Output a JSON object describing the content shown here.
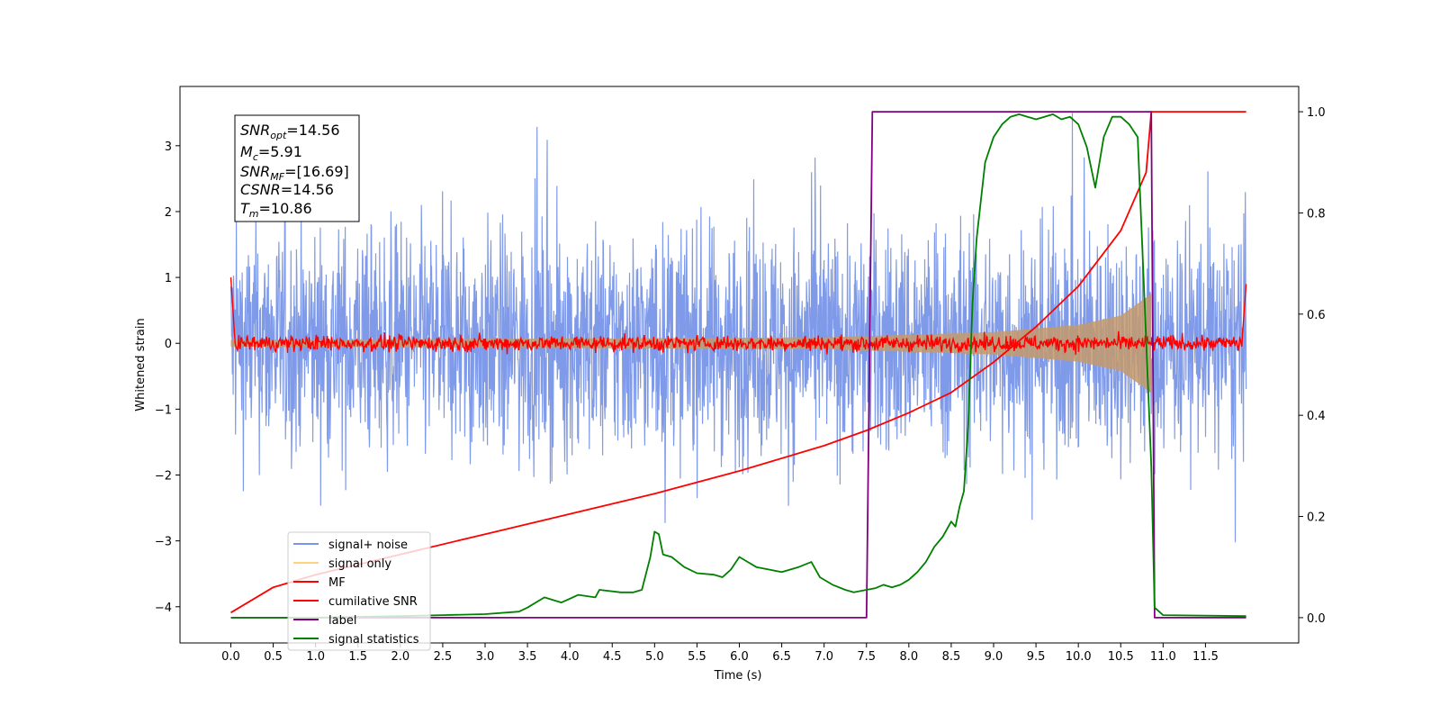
{
  "chart_data": {
    "type": "line",
    "xlabel": "Time (s)",
    "ylabel": "Whitened strain",
    "xlim": [
      -0.6,
      12.6
    ],
    "ylim": [
      -4.55,
      3.9
    ],
    "ylim_right": [
      -0.05,
      1.05
    ],
    "x_ticks": [
      "0.0",
      "0.5",
      "1.0",
      "1.5",
      "2.0",
      "2.5",
      "3.0",
      "3.5",
      "4.0",
      "4.5",
      "5.0",
      "5.5",
      "6.0",
      "6.5",
      "7.0",
      "7.5",
      "8.0",
      "8.5",
      "9.0",
      "9.5",
      "10.0",
      "10.5",
      "11.0",
      "11.5"
    ],
    "y_ticks": [
      "3",
      "2",
      "1",
      "0",
      "−1",
      "−2",
      "−3",
      "−4"
    ],
    "y_right_ticks": [
      "1.0",
      "0.8",
      "0.6",
      "0.4",
      "0.2",
      "0.0"
    ],
    "grid": false,
    "legend_position": "lower-left",
    "info_box": {
      "line1": {
        "sym": "SNR",
        "sub": "opt",
        "val": "=14.56"
      },
      "line2": {
        "sym": "M",
        "sub": "c",
        "val": "=5.91"
      },
      "line3": {
        "sym": "SNR",
        "sub": "MF",
        "val": "=[16.69]"
      },
      "line4": {
        "sym": "CSNR",
        "val": "=14.56"
      },
      "line5": {
        "sym": "T",
        "sub": "m",
        "val": "=10.86"
      }
    },
    "series": [
      {
        "name": "signal+ noise",
        "color": "#7895e8",
        "axis": "left",
        "x_range": [
          0,
          11.98
        ],
        "amplitude_sigma": 0.85
      },
      {
        "name": "signal only",
        "color": "#ffd27f",
        "axis": "left",
        "x_range": [
          0,
          10.86
        ],
        "envelope": [
          [
            0,
            0.05
          ],
          [
            7.0,
            0.09
          ],
          [
            9.0,
            0.17
          ],
          [
            10.0,
            0.28
          ],
          [
            10.5,
            0.42
          ],
          [
            10.86,
            0.75
          ]
        ]
      },
      {
        "name": "MF",
        "color": "#ff0000",
        "axis": "left",
        "x_range": [
          0,
          11.98
        ],
        "level": 0.0,
        "noise": 0.06
      },
      {
        "name": "cumilative SNR",
        "color": "#ff0000",
        "axis": "right",
        "x": [
          0,
          0.5,
          1,
          2,
          3,
          4,
          5,
          6,
          7,
          7.5,
          8,
          8.5,
          9,
          9.5,
          10,
          10.5,
          10.8,
          10.86,
          11.98
        ],
        "values": [
          0.01,
          0.06,
          0.085,
          0.125,
          0.165,
          0.205,
          0.245,
          0.29,
          0.34,
          0.37,
          0.405,
          0.445,
          0.505,
          0.575,
          0.655,
          0.765,
          0.88,
          1.0,
          1.0
        ]
      },
      {
        "name": "label",
        "color": "#800080",
        "axis": "right",
        "x": [
          0,
          7.5,
          7.57,
          10.86,
          10.9,
          11.98
        ],
        "values": [
          0,
          0,
          1,
          1,
          0,
          0
        ]
      },
      {
        "name": "signal statistics",
        "color": "#008000",
        "axis": "right",
        "x": [
          0,
          1,
          2,
          2.5,
          3,
          3.4,
          3.5,
          3.7,
          3.9,
          4.1,
          4.3,
          4.35,
          4.6,
          4.75,
          4.85,
          4.95,
          5.0,
          5.05,
          5.1,
          5.2,
          5.35,
          5.5,
          5.7,
          5.8,
          5.9,
          6.0,
          6.1,
          6.2,
          6.35,
          6.5,
          6.7,
          6.85,
          6.95,
          7.1,
          7.25,
          7.35,
          7.5,
          7.6,
          7.7,
          7.8,
          7.9,
          8.0,
          8.1,
          8.2,
          8.3,
          8.4,
          8.5,
          8.55,
          8.6,
          8.65,
          8.7,
          8.75,
          8.8,
          8.9,
          9.0,
          9.1,
          9.2,
          9.3,
          9.4,
          9.5,
          9.6,
          9.7,
          9.8,
          9.9,
          10.0,
          10.1,
          10.2,
          10.3,
          10.4,
          10.5,
          10.6,
          10.7,
          10.8,
          10.86,
          10.9,
          11.0,
          11.98
        ],
        "values": [
          0,
          0,
          0.003,
          0.005,
          0.007,
          0.012,
          0.02,
          0.04,
          0.03,
          0.045,
          0.04,
          0.055,
          0.05,
          0.05,
          0.055,
          0.12,
          0.17,
          0.165,
          0.125,
          0.12,
          0.1,
          0.088,
          0.085,
          0.08,
          0.095,
          0.12,
          0.11,
          0.1,
          0.095,
          0.09,
          0.1,
          0.11,
          0.08,
          0.065,
          0.055,
          0.05,
          0.055,
          0.058,
          0.065,
          0.06,
          0.065,
          0.075,
          0.09,
          0.11,
          0.14,
          0.16,
          0.19,
          0.18,
          0.22,
          0.25,
          0.38,
          0.62,
          0.75,
          0.9,
          0.95,
          0.975,
          0.99,
          0.995,
          0.99,
          0.985,
          0.99,
          0.995,
          0.985,
          0.99,
          0.975,
          0.93,
          0.85,
          0.95,
          0.99,
          0.99,
          0.975,
          0.95,
          0.55,
          0.3,
          0.02,
          0.005,
          0.003
        ]
      }
    ]
  }
}
